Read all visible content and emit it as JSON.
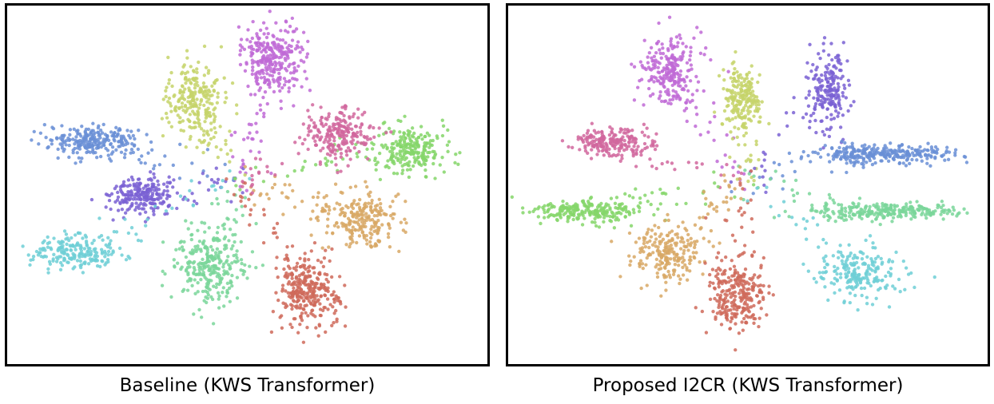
{
  "chart_data": [
    {
      "type": "scatter",
      "title": "Baseline (KWS Transformer)",
      "grid": false,
      "legend": "none",
      "clusters": [
        {
          "color": "#c06ad6",
          "center": [
            345,
            75
          ],
          "spread": [
            40,
            45
          ],
          "count": 320
        },
        {
          "color": "#c5d46a",
          "center": [
            245,
            130
          ],
          "spread": [
            35,
            50
          ],
          "count": 260
        },
        {
          "color": "#6a8fd6",
          "center": [
            115,
            178
          ],
          "spread": [
            60,
            18
          ],
          "count": 260
        },
        {
          "color": "#7a62d4",
          "center": [
            180,
            248
          ],
          "spread": [
            40,
            25
          ],
          "count": 240
        },
        {
          "color": "#6fcfd6",
          "center": [
            95,
            320
          ],
          "spread": [
            60,
            22
          ],
          "count": 230
        },
        {
          "color": "#7ad69a",
          "center": [
            265,
            335
          ],
          "spread": [
            45,
            45
          ],
          "count": 300
        },
        {
          "color": "#cf6a5a",
          "center": [
            390,
            370
          ],
          "spread": [
            40,
            45
          ],
          "count": 320
        },
        {
          "color": "#d8a865",
          "center": [
            460,
            280
          ],
          "spread": [
            50,
            35
          ],
          "count": 260
        },
        {
          "color": "#85d66a",
          "center": [
            520,
            190
          ],
          "spread": [
            55,
            30
          ],
          "count": 260
        },
        {
          "color": "#d1679e",
          "center": [
            430,
            170
          ],
          "spread": [
            40,
            35
          ],
          "count": 240
        }
      ]
    },
    {
      "type": "scatter",
      "title": "Proposed I2CR (KWS Transformer)",
      "grid": false,
      "legend": "none",
      "clusters": [
        {
          "color": "#c06ad6",
          "center": [
            840,
            90
          ],
          "spread": [
            35,
            45
          ],
          "count": 260
        },
        {
          "color": "#c5d46a",
          "center": [
            935,
            125
          ],
          "spread": [
            25,
            45
          ],
          "count": 220
        },
        {
          "color": "#7a62d4",
          "center": [
            1040,
            110
          ],
          "spread": [
            25,
            55
          ],
          "count": 220
        },
        {
          "color": "#6a8fd6",
          "center": [
            1110,
            195
          ],
          "spread": [
            95,
            12
          ],
          "count": 300
        },
        {
          "color": "#d1679e",
          "center": [
            765,
            180
          ],
          "spread": [
            50,
            20
          ],
          "count": 220
        },
        {
          "color": "#85d66a",
          "center": [
            735,
            268
          ],
          "spread": [
            70,
            15
          ],
          "count": 250
        },
        {
          "color": "#7ad69a",
          "center": [
            1110,
            268
          ],
          "spread": [
            100,
            10
          ],
          "count": 280
        },
        {
          "color": "#d8a865",
          "center": [
            835,
            320
          ],
          "spread": [
            45,
            35
          ],
          "count": 240
        },
        {
          "color": "#cf6a5a",
          "center": [
            925,
            375
          ],
          "spread": [
            35,
            45
          ],
          "count": 280
        },
        {
          "color": "#6fcfd6",
          "center": [
            1080,
            345
          ],
          "spread": [
            50,
            35
          ],
          "count": 230
        }
      ]
    }
  ],
  "captions": {
    "left": "Baseline (KWS Transformer)",
    "right": "Proposed I2CR (KWS Transformer)"
  }
}
